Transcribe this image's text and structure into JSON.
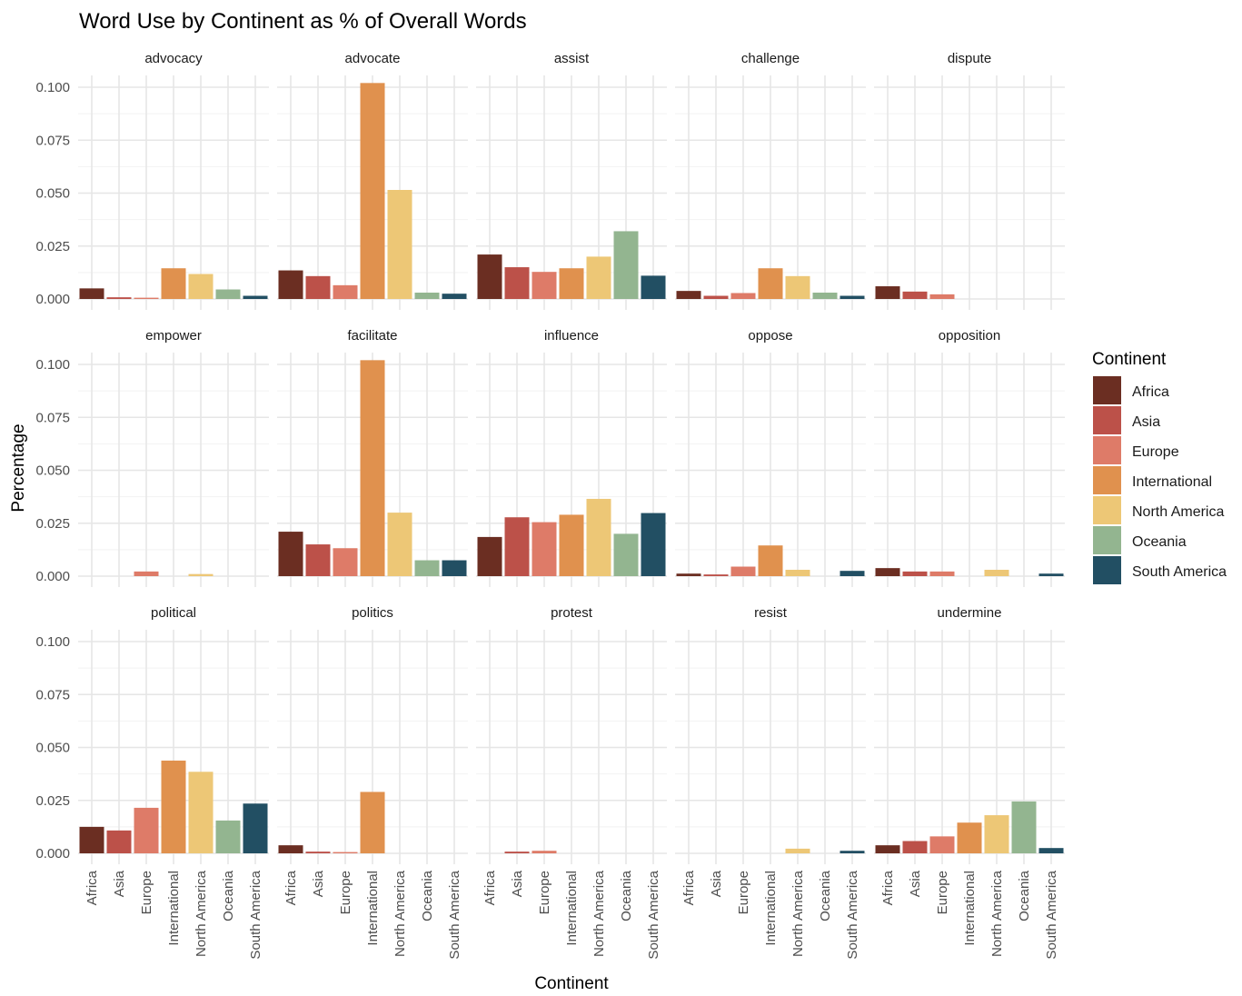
{
  "chart_data": {
    "type": "bar",
    "title": "Word Use by Continent as % of Overall Words",
    "xlabel": "Continent",
    "ylabel": "Percentage",
    "ylim": [
      0,
      0.105
    ],
    "yticks": [
      0,
      0.025,
      0.05,
      0.075,
      0.1
    ],
    "ytick_labels": [
      "0.000",
      "0.025",
      "0.050",
      "0.075",
      "0.100"
    ],
    "grid": true,
    "legend_position": "right",
    "legend_title": "Continent",
    "categories": [
      "Africa",
      "Asia",
      "Europe",
      "International",
      "North America",
      "Oceania",
      "South America"
    ],
    "colors": {
      "Africa": "#6B2E22",
      "Asia": "#BC5149",
      "Europe": "#DE7B68",
      "International": "#E0914E",
      "North America": "#EDC776",
      "Oceania": "#93B590",
      "South America": "#224F63"
    },
    "panels": [
      {
        "word": "advocacy",
        "values": [
          0.005,
          0.0008,
          0.0006,
          0.0145,
          0.0118,
          0.0045,
          0.0015
        ]
      },
      {
        "word": "advocate",
        "values": [
          0.0135,
          0.0108,
          0.0065,
          0.102,
          0.0515,
          0.003,
          0.0025
        ]
      },
      {
        "word": "assist",
        "values": [
          0.021,
          0.015,
          0.0128,
          0.0145,
          0.02,
          0.032,
          0.011
        ]
      },
      {
        "word": "challenge",
        "values": [
          0.0038,
          0.0015,
          0.0028,
          0.0145,
          0.0108,
          0.003,
          0.0015
        ]
      },
      {
        "word": "dispute",
        "values": [
          0.006,
          0.0035,
          0.0022,
          0,
          0,
          0,
          0
        ]
      },
      {
        "word": "empower",
        "values": [
          0,
          0,
          0.0022,
          0,
          0.001,
          0,
          0
        ]
      },
      {
        "word": "facilitate",
        "values": [
          0.021,
          0.015,
          0.0132,
          0.102,
          0.03,
          0.0075,
          0.0075
        ]
      },
      {
        "word": "influence",
        "values": [
          0.0185,
          0.0278,
          0.0255,
          0.029,
          0.0365,
          0.02,
          0.0298
        ]
      },
      {
        "word": "oppose",
        "values": [
          0.0012,
          0.0008,
          0.0045,
          0.0145,
          0.003,
          0,
          0.0025
        ]
      },
      {
        "word": "opposition",
        "values": [
          0.0038,
          0.0022,
          0.0022,
          0,
          0.003,
          0,
          0.0012
        ]
      },
      {
        "word": "political",
        "values": [
          0.0125,
          0.0108,
          0.0215,
          0.0438,
          0.0385,
          0.0155,
          0.0235
        ]
      },
      {
        "word": "politics",
        "values": [
          0.0038,
          0.0008,
          0.0006,
          0.029,
          0,
          0,
          0
        ]
      },
      {
        "word": "protest",
        "values": [
          0,
          0.0008,
          0.0012,
          0,
          0,
          0,
          0
        ]
      },
      {
        "word": "resist",
        "values": [
          0,
          0,
          0,
          0,
          0.0022,
          0,
          0.0012
        ]
      },
      {
        "word": "undermine",
        "values": [
          0.0038,
          0.0058,
          0.008,
          0.0145,
          0.018,
          0.0245,
          0.0025
        ]
      }
    ]
  }
}
